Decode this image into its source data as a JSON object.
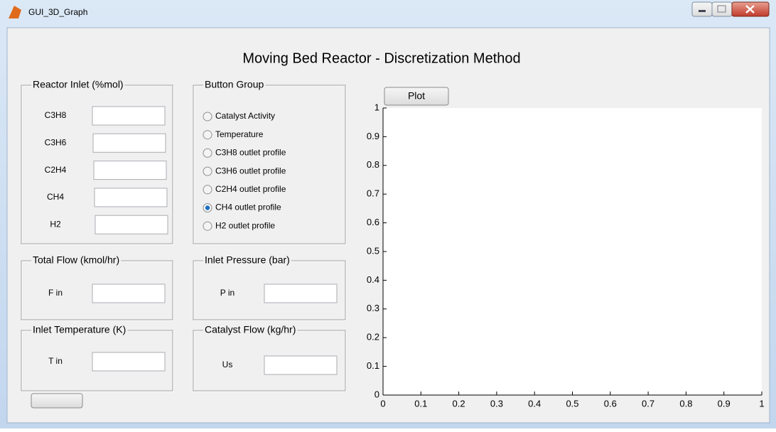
{
  "window": {
    "title": "GUI_3D_Graph"
  },
  "heading": "Moving Bed Reactor - Discretization Method",
  "panels": [
    {
      "title": "Reactor Inlet (%mol)",
      "fields": [
        "C3H8",
        "C3H6",
        "C2H4",
        "CH4",
        "H2"
      ]
    },
    {
      "title": "Button Group",
      "options": [
        "Catalyst Activity",
        "Temperature",
        "C3H8 outlet profile",
        "C3H6 outlet profile",
        "C2H4 outlet profile",
        "CH4 outlet profile",
        "H2 outlet profile"
      ],
      "selected": 5
    },
    {
      "title": "Total Flow (kmol/hr)",
      "fields": [
        "F in"
      ]
    },
    {
      "title": "Inlet Pressure (bar)",
      "fields": [
        "P in"
      ]
    },
    {
      "title": "Inlet Temperature (K)",
      "fields": [
        "T in"
      ]
    },
    {
      "title": "Catalyst Flow (kg/hr)",
      "fields": [
        "Us"
      ]
    }
  ],
  "plot_button": "Plot",
  "axes": {
    "xlim": [
      0,
      1
    ],
    "ylim": [
      0,
      1
    ],
    "xticks": [
      0,
      0.1,
      0.2,
      0.3,
      0.4,
      0.5,
      0.6,
      0.7,
      0.8,
      0.9,
      1
    ],
    "yticks": [
      0,
      0.1,
      0.2,
      0.3,
      0.4,
      0.5,
      0.6,
      0.7,
      0.8,
      0.9,
      1
    ]
  }
}
